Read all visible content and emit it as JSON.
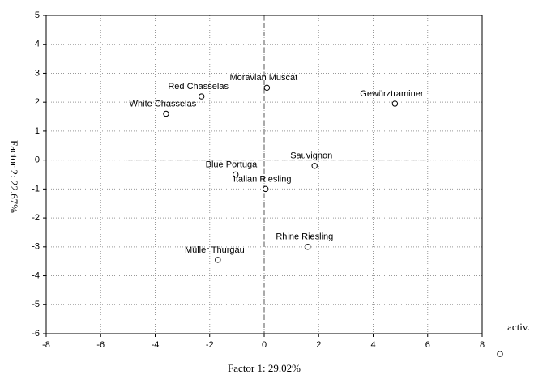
{
  "chart_data": {
    "type": "scatter",
    "xlabel": "Factor 1: 29.02%",
    "ylabel": "Factor 2: 22.67%",
    "xlim": [
      -8,
      8
    ],
    "xticks": [
      -8,
      -6,
      -4,
      -2,
      0,
      2,
      4,
      6,
      8
    ],
    "ylim": [
      -6,
      5
    ],
    "yticks": [
      -6,
      -5,
      -4,
      -3,
      -2,
      -1,
      0,
      1,
      2,
      3,
      4,
      5
    ],
    "grid": true,
    "legend": "bottom-right",
    "series": [
      {
        "name": "activ.",
        "color": "#000000",
        "labels": [
          "Gewürztraminer",
          "Moravian Muscat",
          "Red Chasselas",
          "White Chasselas",
          "Sauvignon",
          "Blue Portugal",
          "Italian Riesling",
          "Rhine Riesling",
          "Müller Thurgau"
        ],
        "x": [
          4.8,
          0.1,
          -2.3,
          -3.6,
          1.85,
          -1.05,
          0.05,
          1.6,
          -1.7
        ],
        "values": [
          1.95,
          2.5,
          2.2,
          1.6,
          -0.2,
          -0.5,
          -1.0,
          -3.0,
          -3.45
        ]
      }
    ]
  }
}
